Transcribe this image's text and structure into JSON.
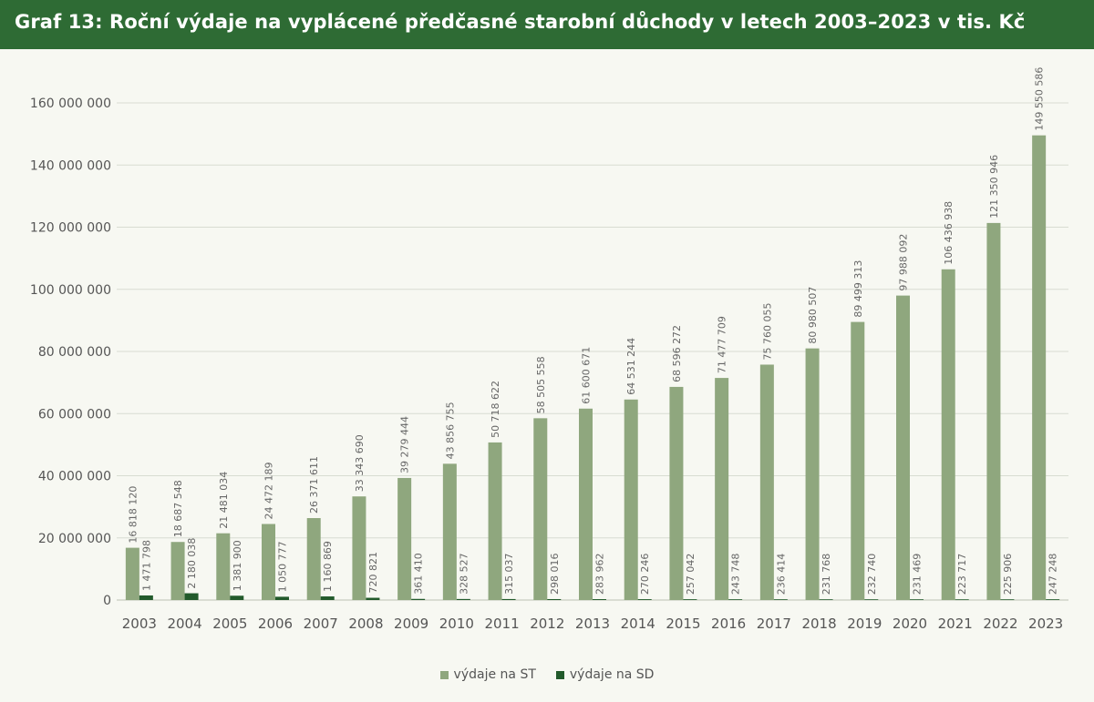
{
  "title": "Graf 13: Roční výdaje na vyplácené předčasné starobní důchody v letech 2003–2023 v tis. Kč",
  "colors": {
    "header_bg": "#2e6b34",
    "st": "#8fa77e",
    "sd": "#225a2b",
    "grid": "#d8dcd2"
  },
  "chart_data": {
    "type": "bar",
    "categories": [
      "2003",
      "2004",
      "2005",
      "2006",
      "2007",
      "2008",
      "2009",
      "2010",
      "2011",
      "2012",
      "2013",
      "2014",
      "2015",
      "2016",
      "2017",
      "2018",
      "2019",
      "2020",
      "2021",
      "2022",
      "2023"
    ],
    "series": [
      {
        "name": "výdaje na ST",
        "values": [
          16818120,
          18687548,
          21481034,
          24472189,
          26371611,
          33343690,
          39279444,
          43856755,
          50718622,
          58505558,
          61600671,
          64531244,
          68596272,
          71477709,
          75760055,
          80980507,
          89499313,
          97988092,
          106436938,
          121350946,
          149550586
        ],
        "labels": [
          "16 818 120",
          "18 687 548",
          "21 481 034",
          "24 472 189",
          "26 371 611",
          "33 343 690",
          "39 279 444",
          "43 856 755",
          "50 718 622",
          "58 505 558",
          "61 600 671",
          "64 531 244",
          "68 596 272",
          "71 477 709",
          "75 760 055",
          "80 980 507",
          "89 499 313",
          "97 988 092",
          "106 436 938",
          "121 350 946",
          "149 550 586"
        ]
      },
      {
        "name": "výdaje na SD",
        "values": [
          1471798,
          2180038,
          1381900,
          1050777,
          1160869,
          720821,
          361410,
          328527,
          315037,
          298016,
          283962,
          270246,
          257042,
          243748,
          236414,
          231768,
          232740,
          231469,
          223717,
          225906,
          247248
        ],
        "labels": [
          "1 471 798",
          "2 180 038",
          "1 381 900",
          "1 050 777",
          "1 160 869",
          "720 821",
          "361 410",
          "328 527",
          "315 037",
          "298 016",
          "283 962",
          "270 246",
          "257 042",
          "243 748",
          "236 414",
          "231 768",
          "232 740",
          "231 469",
          "223 717",
          "225 906",
          "247 248"
        ]
      }
    ],
    "ylim": [
      0,
      160000000
    ],
    "yticks": [
      0,
      20000000,
      40000000,
      60000000,
      80000000,
      100000000,
      120000000,
      140000000,
      160000000
    ],
    "ytick_labels": [
      "0",
      "20 000 000",
      "40 000 000",
      "60 000 000",
      "80 000 000",
      "100 000 000",
      "120 000 000",
      "140 000 000",
      "160 000 000"
    ],
    "grid": true,
    "legend": "bottom-center"
  }
}
